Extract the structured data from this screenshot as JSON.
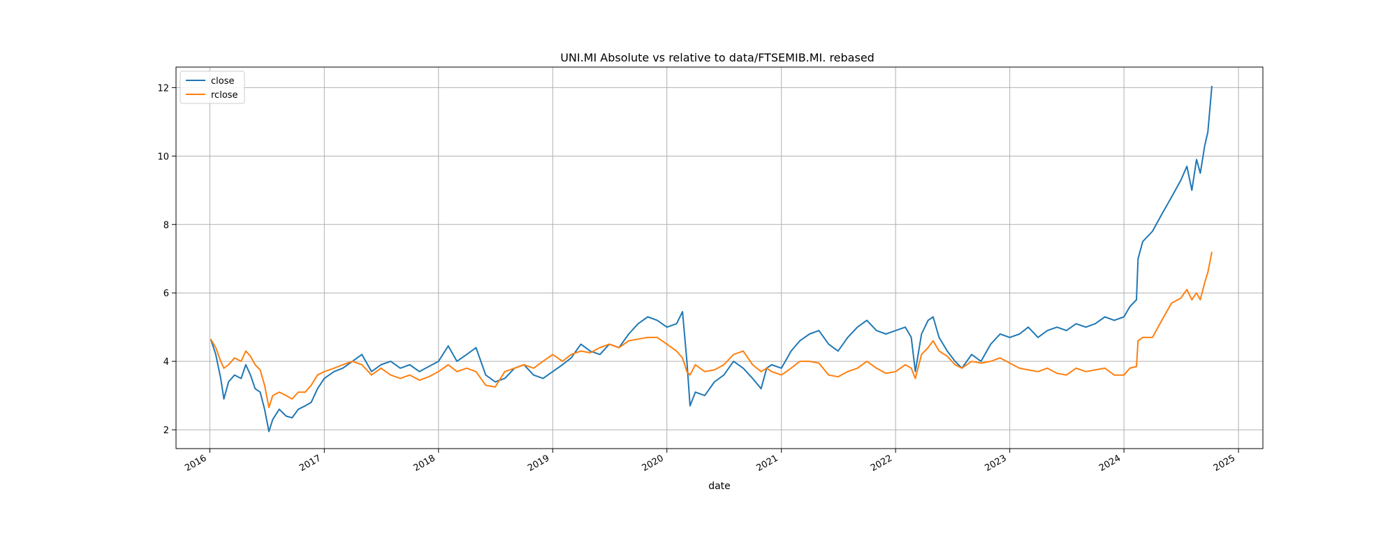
{
  "chart_data": {
    "type": "line",
    "title": "UNI.MI Absolute vs relative to data/FTSEMIB.MI. rebased",
    "xlabel": "date",
    "ylabel": "",
    "xlim": [
      "2015-09-15",
      "2025-03-20"
    ],
    "ylim": [
      1.45,
      12.6
    ],
    "x_ticks": [
      "2016",
      "2017",
      "2018",
      "2019",
      "2020",
      "2021",
      "2022",
      "2023",
      "2024",
      "2025"
    ],
    "y_ticks": [
      2,
      4,
      6,
      8,
      10,
      12
    ],
    "grid": true,
    "legend": "top-left",
    "colors": {
      "close": "#1f77b4",
      "rclose": "#ff7f0e"
    },
    "series": [
      {
        "name": "close",
        "points": [
          [
            "2016-01-04",
            4.65
          ],
          [
            "2016-01-20",
            4.2
          ],
          [
            "2016-02-05",
            3.5
          ],
          [
            "2016-02-15",
            2.9
          ],
          [
            "2016-03-01",
            3.4
          ],
          [
            "2016-03-20",
            3.6
          ],
          [
            "2016-04-10",
            3.5
          ],
          [
            "2016-04-25",
            3.9
          ],
          [
            "2016-05-10",
            3.6
          ],
          [
            "2016-05-25",
            3.2
          ],
          [
            "2016-06-10",
            3.1
          ],
          [
            "2016-06-24",
            2.6
          ],
          [
            "2016-07-08",
            1.95
          ],
          [
            "2016-07-20",
            2.3
          ],
          [
            "2016-08-10",
            2.6
          ],
          [
            "2016-09-01",
            2.4
          ],
          [
            "2016-09-20",
            2.35
          ],
          [
            "2016-10-10",
            2.6
          ],
          [
            "2016-11-01",
            2.7
          ],
          [
            "2016-11-20",
            2.8
          ],
          [
            "2016-12-10",
            3.2
          ],
          [
            "2017-01-01",
            3.5
          ],
          [
            "2017-02-01",
            3.7
          ],
          [
            "2017-03-01",
            3.8
          ],
          [
            "2017-04-01",
            4.0
          ],
          [
            "2017-05-01",
            4.2
          ],
          [
            "2017-06-01",
            3.7
          ],
          [
            "2017-07-01",
            3.9
          ],
          [
            "2017-08-01",
            4.0
          ],
          [
            "2017-09-01",
            3.8
          ],
          [
            "2017-10-01",
            3.9
          ],
          [
            "2017-11-01",
            3.7
          ],
          [
            "2017-12-01",
            3.85
          ],
          [
            "2018-01-01",
            4.0
          ],
          [
            "2018-02-01",
            4.45
          ],
          [
            "2018-03-01",
            4.0
          ],
          [
            "2018-04-01",
            4.2
          ],
          [
            "2018-05-01",
            4.4
          ],
          [
            "2018-06-01",
            3.6
          ],
          [
            "2018-07-01",
            3.4
          ],
          [
            "2018-08-01",
            3.5
          ],
          [
            "2018-09-01",
            3.8
          ],
          [
            "2018-10-01",
            3.9
          ],
          [
            "2018-11-01",
            3.6
          ],
          [
            "2018-12-01",
            3.5
          ],
          [
            "2019-01-01",
            3.7
          ],
          [
            "2019-02-01",
            3.9
          ],
          [
            "2019-03-01",
            4.1
          ],
          [
            "2019-04-01",
            4.5
          ],
          [
            "2019-05-01",
            4.3
          ],
          [
            "2019-06-01",
            4.2
          ],
          [
            "2019-07-01",
            4.5
          ],
          [
            "2019-08-01",
            4.4
          ],
          [
            "2019-09-01",
            4.8
          ],
          [
            "2019-10-01",
            5.1
          ],
          [
            "2019-11-01",
            5.3
          ],
          [
            "2019-12-01",
            5.2
          ],
          [
            "2020-01-01",
            5.0
          ],
          [
            "2020-02-01",
            5.1
          ],
          [
            "2020-02-20",
            5.45
          ],
          [
            "2020-03-05",
            4.0
          ],
          [
            "2020-03-15",
            2.7
          ],
          [
            "2020-04-01",
            3.1
          ],
          [
            "2020-05-01",
            3.0
          ],
          [
            "2020-06-01",
            3.4
          ],
          [
            "2020-07-01",
            3.6
          ],
          [
            "2020-08-01",
            4.0
          ],
          [
            "2020-09-01",
            3.8
          ],
          [
            "2020-10-01",
            3.5
          ],
          [
            "2020-10-28",
            3.2
          ],
          [
            "2020-11-15",
            3.8
          ],
          [
            "2020-12-01",
            3.9
          ],
          [
            "2021-01-01",
            3.8
          ],
          [
            "2021-02-01",
            4.3
          ],
          [
            "2021-03-01",
            4.6
          ],
          [
            "2021-04-01",
            4.8
          ],
          [
            "2021-05-01",
            4.9
          ],
          [
            "2021-06-01",
            4.5
          ],
          [
            "2021-07-01",
            4.3
          ],
          [
            "2021-08-01",
            4.7
          ],
          [
            "2021-09-01",
            5.0
          ],
          [
            "2021-10-01",
            5.2
          ],
          [
            "2021-11-01",
            4.9
          ],
          [
            "2021-12-01",
            4.8
          ],
          [
            "2022-01-01",
            4.9
          ],
          [
            "2022-02-01",
            5.0
          ],
          [
            "2022-02-20",
            4.7
          ],
          [
            "2022-03-05",
            3.7
          ],
          [
            "2022-03-25",
            4.8
          ],
          [
            "2022-04-15",
            5.2
          ],
          [
            "2022-05-01",
            5.3
          ],
          [
            "2022-05-20",
            4.7
          ],
          [
            "2022-06-15",
            4.3
          ],
          [
            "2022-07-10",
            4.0
          ],
          [
            "2022-08-01",
            3.8
          ],
          [
            "2022-09-01",
            4.2
          ],
          [
            "2022-10-01",
            4.0
          ],
          [
            "2022-11-01",
            4.5
          ],
          [
            "2022-12-01",
            4.8
          ],
          [
            "2023-01-01",
            4.7
          ],
          [
            "2023-02-01",
            4.8
          ],
          [
            "2023-03-01",
            5.0
          ],
          [
            "2023-04-01",
            4.7
          ],
          [
            "2023-05-01",
            4.9
          ],
          [
            "2023-06-01",
            5.0
          ],
          [
            "2023-07-01",
            4.9
          ],
          [
            "2023-08-01",
            5.1
          ],
          [
            "2023-09-01",
            5.0
          ],
          [
            "2023-10-01",
            5.1
          ],
          [
            "2023-11-01",
            5.3
          ],
          [
            "2023-12-01",
            5.2
          ],
          [
            "2024-01-01",
            5.3
          ],
          [
            "2024-01-20",
            5.6
          ],
          [
            "2024-02-10",
            5.8
          ],
          [
            "2024-02-15",
            7.0
          ],
          [
            "2024-03-01",
            7.5
          ],
          [
            "2024-04-01",
            7.8
          ],
          [
            "2024-05-01",
            8.3
          ],
          [
            "2024-06-01",
            8.8
          ],
          [
            "2024-07-01",
            9.3
          ],
          [
            "2024-07-20",
            9.7
          ],
          [
            "2024-08-05",
            9.0
          ],
          [
            "2024-08-20",
            9.9
          ],
          [
            "2024-09-01",
            9.5
          ],
          [
            "2024-09-15",
            10.3
          ],
          [
            "2024-09-25",
            10.7
          ],
          [
            "2024-10-08",
            12.05
          ]
        ]
      },
      {
        "name": "rclose",
        "points": [
          [
            "2016-01-04",
            4.65
          ],
          [
            "2016-01-20",
            4.4
          ],
          [
            "2016-02-05",
            4.0
          ],
          [
            "2016-02-15",
            3.8
          ],
          [
            "2016-03-01",
            3.9
          ],
          [
            "2016-03-20",
            4.1
          ],
          [
            "2016-04-10",
            4.0
          ],
          [
            "2016-04-25",
            4.3
          ],
          [
            "2016-05-10",
            4.15
          ],
          [
            "2016-05-25",
            3.9
          ],
          [
            "2016-06-10",
            3.75
          ],
          [
            "2016-06-24",
            3.3
          ],
          [
            "2016-07-08",
            2.65
          ],
          [
            "2016-07-20",
            3.0
          ],
          [
            "2016-08-10",
            3.1
          ],
          [
            "2016-09-01",
            3.0
          ],
          [
            "2016-09-20",
            2.9
          ],
          [
            "2016-10-10",
            3.1
          ],
          [
            "2016-11-01",
            3.1
          ],
          [
            "2016-11-20",
            3.3
          ],
          [
            "2016-12-10",
            3.6
          ],
          [
            "2017-01-01",
            3.7
          ],
          [
            "2017-02-01",
            3.8
          ],
          [
            "2017-03-01",
            3.9
          ],
          [
            "2017-04-01",
            4.0
          ],
          [
            "2017-05-01",
            3.9
          ],
          [
            "2017-06-01",
            3.6
          ],
          [
            "2017-07-01",
            3.8
          ],
          [
            "2017-08-01",
            3.6
          ],
          [
            "2017-09-01",
            3.5
          ],
          [
            "2017-10-01",
            3.6
          ],
          [
            "2017-11-01",
            3.45
          ],
          [
            "2017-12-01",
            3.55
          ],
          [
            "2018-01-01",
            3.7
          ],
          [
            "2018-02-01",
            3.9
          ],
          [
            "2018-03-01",
            3.7
          ],
          [
            "2018-04-01",
            3.8
          ],
          [
            "2018-05-01",
            3.7
          ],
          [
            "2018-06-01",
            3.3
          ],
          [
            "2018-07-01",
            3.25
          ],
          [
            "2018-08-01",
            3.7
          ],
          [
            "2018-09-01",
            3.8
          ],
          [
            "2018-10-01",
            3.9
          ],
          [
            "2018-11-01",
            3.8
          ],
          [
            "2018-12-01",
            4.0
          ],
          [
            "2019-01-01",
            4.2
          ],
          [
            "2019-02-01",
            4.0
          ],
          [
            "2019-03-01",
            4.2
          ],
          [
            "2019-04-01",
            4.3
          ],
          [
            "2019-05-01",
            4.25
          ],
          [
            "2019-06-01",
            4.4
          ],
          [
            "2019-07-01",
            4.5
          ],
          [
            "2019-08-01",
            4.4
          ],
          [
            "2019-09-01",
            4.6
          ],
          [
            "2019-10-01",
            4.65
          ],
          [
            "2019-11-01",
            4.7
          ],
          [
            "2019-12-01",
            4.7
          ],
          [
            "2020-01-01",
            4.5
          ],
          [
            "2020-02-01",
            4.3
          ],
          [
            "2020-02-20",
            4.1
          ],
          [
            "2020-03-05",
            3.7
          ],
          [
            "2020-03-15",
            3.6
          ],
          [
            "2020-04-01",
            3.9
          ],
          [
            "2020-05-01",
            3.7
          ],
          [
            "2020-06-01",
            3.75
          ],
          [
            "2020-07-01",
            3.9
          ],
          [
            "2020-08-01",
            4.2
          ],
          [
            "2020-09-01",
            4.3
          ],
          [
            "2020-10-01",
            3.9
          ],
          [
            "2020-10-28",
            3.7
          ],
          [
            "2020-11-15",
            3.8
          ],
          [
            "2020-12-01",
            3.7
          ],
          [
            "2021-01-01",
            3.6
          ],
          [
            "2021-02-01",
            3.8
          ],
          [
            "2021-03-01",
            4.0
          ],
          [
            "2021-04-01",
            4.0
          ],
          [
            "2021-05-01",
            3.95
          ],
          [
            "2021-06-01",
            3.6
          ],
          [
            "2021-07-01",
            3.55
          ],
          [
            "2021-08-01",
            3.7
          ],
          [
            "2021-09-01",
            3.8
          ],
          [
            "2021-10-01",
            4.0
          ],
          [
            "2021-11-01",
            3.8
          ],
          [
            "2021-12-01",
            3.65
          ],
          [
            "2022-01-01",
            3.7
          ],
          [
            "2022-02-01",
            3.9
          ],
          [
            "2022-02-20",
            3.8
          ],
          [
            "2022-03-05",
            3.5
          ],
          [
            "2022-03-25",
            4.2
          ],
          [
            "2022-04-15",
            4.4
          ],
          [
            "2022-05-01",
            4.6
          ],
          [
            "2022-05-20",
            4.3
          ],
          [
            "2022-06-15",
            4.15
          ],
          [
            "2022-07-10",
            3.9
          ],
          [
            "2022-08-01",
            3.8
          ],
          [
            "2022-09-01",
            4.0
          ],
          [
            "2022-10-01",
            3.95
          ],
          [
            "2022-11-01",
            4.0
          ],
          [
            "2022-12-01",
            4.1
          ],
          [
            "2023-01-01",
            3.95
          ],
          [
            "2023-02-01",
            3.8
          ],
          [
            "2023-03-01",
            3.75
          ],
          [
            "2023-04-01",
            3.7
          ],
          [
            "2023-05-01",
            3.8
          ],
          [
            "2023-06-01",
            3.65
          ],
          [
            "2023-07-01",
            3.6
          ],
          [
            "2023-08-01",
            3.8
          ],
          [
            "2023-09-01",
            3.7
          ],
          [
            "2023-10-01",
            3.75
          ],
          [
            "2023-11-01",
            3.8
          ],
          [
            "2023-12-01",
            3.6
          ],
          [
            "2024-01-01",
            3.6
          ],
          [
            "2024-01-20",
            3.8
          ],
          [
            "2024-02-10",
            3.85
          ],
          [
            "2024-02-15",
            4.6
          ],
          [
            "2024-03-01",
            4.7
          ],
          [
            "2024-04-01",
            4.7
          ],
          [
            "2024-05-01",
            5.2
          ],
          [
            "2024-06-01",
            5.7
          ],
          [
            "2024-07-01",
            5.85
          ],
          [
            "2024-07-20",
            6.1
          ],
          [
            "2024-08-05",
            5.8
          ],
          [
            "2024-08-20",
            6.0
          ],
          [
            "2024-09-01",
            5.8
          ],
          [
            "2024-09-15",
            6.3
          ],
          [
            "2024-09-25",
            6.6
          ],
          [
            "2024-10-08",
            7.2
          ]
        ]
      }
    ]
  }
}
